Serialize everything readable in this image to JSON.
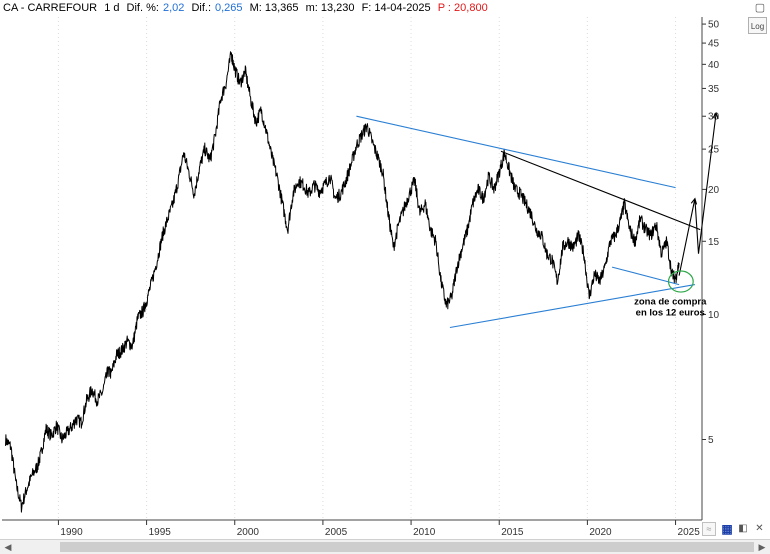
{
  "header": {
    "symbol": "CA - CARREFOUR",
    "period": "1 d",
    "pct_label": "Dif. %:",
    "pct_value": "2,02",
    "dif_label": "Dif.:",
    "dif_value": "0,265",
    "max_label": "M: 13,365",
    "min_label": "m: 13,230",
    "date_label": "F: 14-04-2025",
    "price_label": "P : 20,800",
    "colors": {
      "value": "#1f6fd6",
      "price": "#e01818"
    }
  },
  "toolbar": {
    "log_label": "Log",
    "icons": [
      "corner-menu-icon",
      "reset-zoom-icon",
      "save-chart-icon",
      "dock-icon",
      "close-icon"
    ]
  },
  "chart_data": {
    "type": "line",
    "scale": "log",
    "ylim": [
      3.2,
      52
    ],
    "xlim": [
      1986.8,
      2026.5
    ],
    "y_ticks": [
      5,
      10,
      15,
      20,
      25,
      30,
      35,
      40,
      45,
      50
    ],
    "x_ticks": [
      1990,
      1995,
      2000,
      2005,
      2010,
      2015,
      2020,
      2025
    ],
    "annotation": [
      "zona de compra",
      "en los 12 euros"
    ],
    "series": [
      {
        "type": "line",
        "color": "#000000",
        "points": [
          [
            1987.0,
            5.0
          ],
          [
            1987.3,
            4.8
          ],
          [
            1987.6,
            3.9
          ],
          [
            1987.9,
            3.45
          ],
          [
            1988.2,
            3.8
          ],
          [
            1988.5,
            4.1
          ],
          [
            1988.8,
            4.3
          ],
          [
            1989.0,
            4.6
          ],
          [
            1989.3,
            5.3
          ],
          [
            1989.6,
            5.1
          ],
          [
            1989.9,
            5.4
          ],
          [
            1990.2,
            5.0
          ],
          [
            1990.5,
            5.2
          ],
          [
            1990.8,
            5.4
          ],
          [
            1991.0,
            5.6
          ],
          [
            1991.3,
            5.5
          ],
          [
            1991.6,
            6.2
          ],
          [
            1991.9,
            6.6
          ],
          [
            1992.2,
            6.2
          ],
          [
            1992.5,
            6.5
          ],
          [
            1992.8,
            7.3
          ],
          [
            1993.0,
            7.2
          ],
          [
            1993.3,
            8.0
          ],
          [
            1993.6,
            8.2
          ],
          [
            1993.9,
            8.6
          ],
          [
            1994.2,
            8.4
          ],
          [
            1994.5,
            9.8
          ],
          [
            1994.8,
            10.2
          ],
          [
            1995.0,
            10.8
          ],
          [
            1995.3,
            12.0
          ],
          [
            1995.6,
            13.5
          ],
          [
            1995.9,
            15.5
          ],
          [
            1996.2,
            17.0
          ],
          [
            1996.5,
            18.5
          ],
          [
            1996.8,
            21.0
          ],
          [
            1997.1,
            24.5
          ],
          [
            1997.4,
            22.0
          ],
          [
            1997.7,
            19.5
          ],
          [
            1998.0,
            22.5
          ],
          [
            1998.3,
            25.0
          ],
          [
            1998.6,
            23.5
          ],
          [
            1998.9,
            27.0
          ],
          [
            1999.2,
            33.0
          ],
          [
            1999.5,
            36.0
          ],
          [
            1999.8,
            42.5
          ],
          [
            2000.0,
            39.0
          ],
          [
            2000.3,
            36.0
          ],
          [
            2000.6,
            38.5
          ],
          [
            2000.9,
            33.0
          ],
          [
            2001.2,
            29.0
          ],
          [
            2001.5,
            31.0
          ],
          [
            2001.8,
            27.5
          ],
          [
            2002.1,
            24.0
          ],
          [
            2002.4,
            21.5
          ],
          [
            2002.7,
            18.5
          ],
          [
            2003.0,
            16.0
          ],
          [
            2003.3,
            19.5
          ],
          [
            2003.6,
            21.0
          ],
          [
            2003.9,
            20.5
          ],
          [
            2004.2,
            19.5
          ],
          [
            2004.5,
            20.5
          ],
          [
            2004.8,
            19.8
          ],
          [
            2005.1,
            20.5
          ],
          [
            2005.4,
            21.5
          ],
          [
            2005.7,
            19.0
          ],
          [
            2006.0,
            19.5
          ],
          [
            2006.3,
            21.0
          ],
          [
            2006.6,
            23.0
          ],
          [
            2006.9,
            25.5
          ],
          [
            2007.2,
            27.0
          ],
          [
            2007.5,
            28.5
          ],
          [
            2007.8,
            26.0
          ],
          [
            2008.1,
            24.0
          ],
          [
            2008.4,
            22.0
          ],
          [
            2008.7,
            17.5
          ],
          [
            2009.0,
            14.5
          ],
          [
            2009.3,
            16.5
          ],
          [
            2009.6,
            18.0
          ],
          [
            2009.9,
            19.5
          ],
          [
            2010.2,
            21.0
          ],
          [
            2010.5,
            17.5
          ],
          [
            2010.8,
            18.5
          ],
          [
            2011.1,
            16.0
          ],
          [
            2011.4,
            15.0
          ],
          [
            2011.7,
            12.0
          ],
          [
            2012.0,
            10.5
          ],
          [
            2012.3,
            11.0
          ],
          [
            2012.6,
            13.0
          ],
          [
            2012.9,
            14.5
          ],
          [
            2013.2,
            16.0
          ],
          [
            2013.5,
            18.5
          ],
          [
            2013.8,
            20.0
          ],
          [
            2014.1,
            19.0
          ],
          [
            2014.4,
            21.5
          ],
          [
            2014.7,
            20.0
          ],
          [
            2015.0,
            22.0
          ],
          [
            2015.3,
            24.5
          ],
          [
            2015.6,
            22.0
          ],
          [
            2015.9,
            20.0
          ],
          [
            2016.2,
            19.5
          ],
          [
            2016.5,
            18.5
          ],
          [
            2016.8,
            17.5
          ],
          [
            2017.1,
            16.0
          ],
          [
            2017.4,
            15.5
          ],
          [
            2017.7,
            14.0
          ],
          [
            2018.0,
            13.5
          ],
          [
            2018.3,
            12.0
          ],
          [
            2018.6,
            14.5
          ],
          [
            2018.9,
            15.0
          ],
          [
            2019.2,
            14.5
          ],
          [
            2019.5,
            15.5
          ],
          [
            2019.8,
            14.0
          ],
          [
            2020.1,
            11.0
          ],
          [
            2020.4,
            12.5
          ],
          [
            2020.7,
            12.0
          ],
          [
            2021.0,
            13.0
          ],
          [
            2021.3,
            15.0
          ],
          [
            2021.6,
            15.5
          ],
          [
            2021.9,
            17.0
          ],
          [
            2022.1,
            18.5
          ],
          [
            2022.4,
            16.0
          ],
          [
            2022.7,
            15.0
          ],
          [
            2023.0,
            17.0
          ],
          [
            2023.3,
            16.0
          ],
          [
            2023.6,
            15.5
          ],
          [
            2023.9,
            16.5
          ],
          [
            2024.2,
            14.0
          ],
          [
            2024.5,
            15.0
          ],
          [
            2024.8,
            12.5
          ],
          [
            2025.0,
            12.2
          ],
          [
            2025.2,
            13.3
          ]
        ]
      },
      {
        "type": "segments",
        "color": "#2a7fd4",
        "segments": [
          [
            [
              2006.9,
              30.0
            ],
            [
              2025.0,
              20.2
            ]
          ],
          [
            [
              2012.2,
              9.3
            ],
            [
              2026.1,
              11.8
            ]
          ],
          [
            [
              2021.4,
              13.0
            ],
            [
              2025.2,
              11.8
            ]
          ]
        ]
      },
      {
        "type": "segments",
        "color": "#000000",
        "segments": [
          [
            [
              2015.1,
              24.7
            ],
            [
              2026.4,
              16.0
            ]
          ],
          [
            [
              2025.2,
              12.4
            ],
            [
              2026.1,
              19.0
            ],
            [
              2026.3,
              14.0
            ],
            [
              2027.3,
              30.5
            ]
          ]
        ]
      },
      {
        "type": "ellipse",
        "color": "#2fa84a",
        "center": [
          2025.3,
          12.0
        ],
        "radius_x_years": 0.7,
        "radius_y_factor": 1.06
      }
    ]
  }
}
